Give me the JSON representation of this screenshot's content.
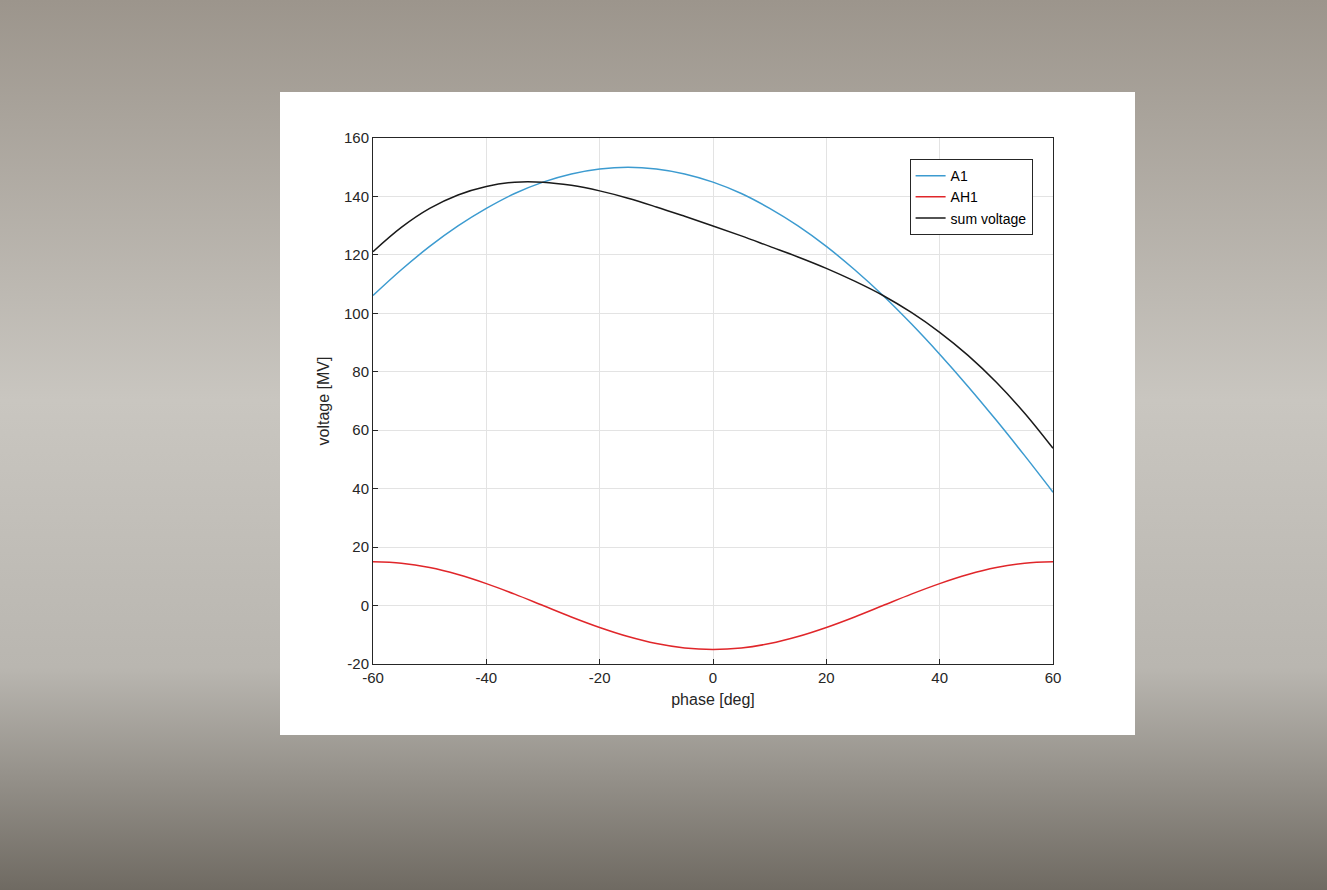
{
  "chart_data": {
    "type": "line",
    "x_label": "phase [deg]",
    "y_label": "voltage [MV]",
    "x": [
      -60,
      -55,
      -50,
      -45,
      -40,
      -35,
      -30,
      -25,
      -20,
      -15,
      -10,
      -5,
      0,
      5,
      10,
      15,
      20,
      25,
      30,
      35,
      40,
      45,
      50,
      55,
      60
    ],
    "series": [
      {
        "name": "A1",
        "color": "#3c9bd0",
        "values": [
          106.1,
          114.9,
          122.9,
          129.9,
          135.9,
          141.0,
          144.9,
          147.7,
          149.4,
          150.0,
          149.4,
          147.7,
          144.9,
          141.0,
          135.9,
          129.9,
          122.9,
          114.9,
          106.1,
          96.4,
          86.0,
          75.0,
          63.4,
          51.3,
          38.8
        ]
      },
      {
        "name": "AH1",
        "color": "#e0262a",
        "values": [
          15.0,
          14.5,
          13.0,
          10.6,
          7.5,
          3.9,
          0.0,
          -3.9,
          -7.5,
          -10.6,
          -13.0,
          -14.5,
          -15.0,
          -14.5,
          -13.0,
          -10.6,
          -7.5,
          -3.9,
          0.0,
          3.9,
          7.5,
          10.6,
          13.0,
          14.5,
          15.0
        ]
      },
      {
        "name": "sum voltage",
        "color": "#1a1a1a",
        "values": [
          121.1,
          129.4,
          135.9,
          140.5,
          143.4,
          144.9,
          144.9,
          143.8,
          141.9,
          139.4,
          136.4,
          133.2,
          129.9,
          126.5,
          122.9,
          119.3,
          115.4,
          111.0,
          106.1,
          100.3,
          93.5,
          85.6,
          76.4,
          65.8,
          53.8
        ]
      }
    ],
    "xlim": [
      -60,
      60
    ],
    "xticks": [
      -60,
      -40,
      -20,
      0,
      20,
      40,
      60
    ],
    "ylim": [
      -20,
      160
    ],
    "yticks": [
      -20,
      0,
      20,
      40,
      60,
      80,
      100,
      120,
      140,
      160
    ],
    "grid": true,
    "legend": "top right"
  }
}
